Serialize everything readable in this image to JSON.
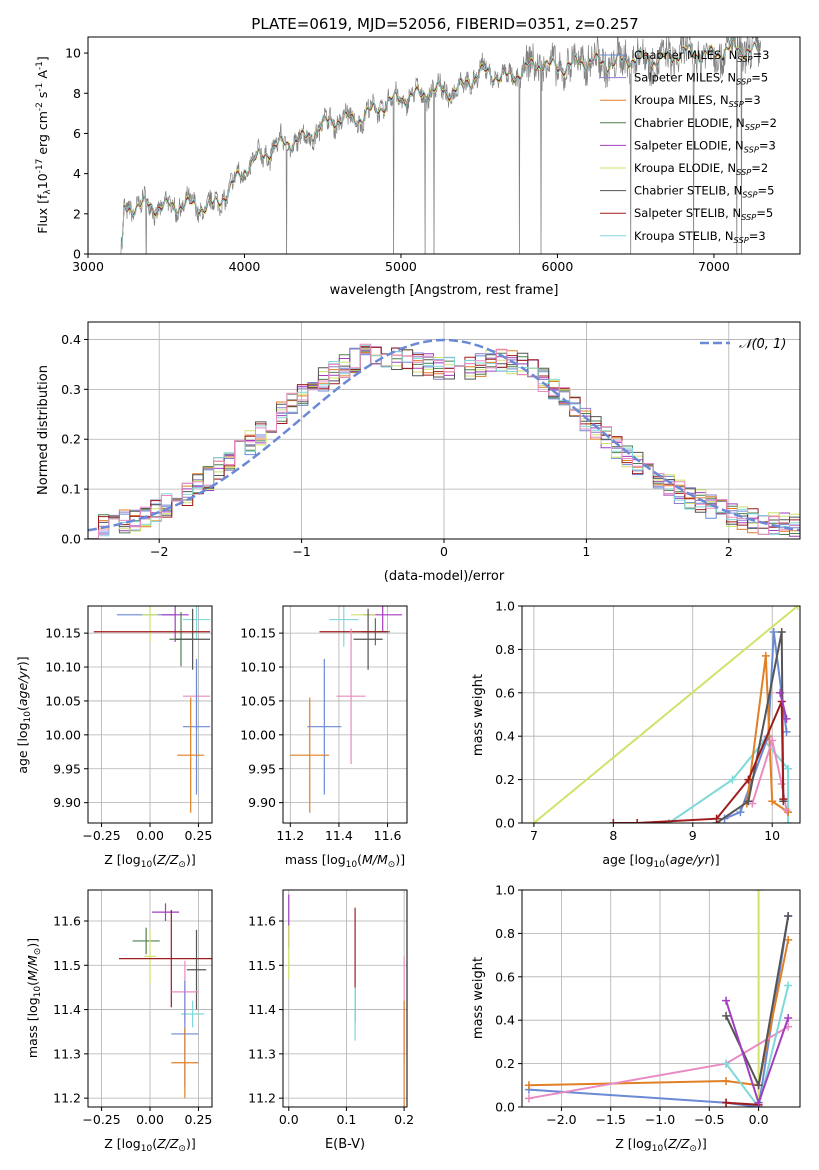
{
  "figure_title": "PLATE=0619, MJD=52056, FIBERID=0351, z=0.257",
  "colors": {
    "CM": "#6a8ad6",
    "SM": "#8c7ec9",
    "KM": "#e07f24",
    "CE": "#4f7f4f",
    "SE": "#a23fbf",
    "KE": "#cfe36a",
    "CS": "#555555",
    "SS": "#a01c1c",
    "KS": "#80d8d8",
    "extra": "#e88bc2",
    "data": "#808080"
  },
  "chart_data": [
    {
      "type": "line",
      "title": "PLATE=0619, MJD=52056, FIBERID=0351, z=0.257",
      "xlabel": "wavelength [Angstrom, rest frame]",
      "ylabel": "Flux [f",
      "ylabel_parts": [
        "Flux [f",
        "λ",
        "10",
        "-17",
        " erg cm",
        "-2",
        " s",
        "-1",
        " A",
        "-1",
        "]"
      ],
      "xlim": [
        3000,
        7550
      ],
      "ylim": [
        0,
        10.8
      ],
      "xticks": [
        3000,
        4000,
        5000,
        6000,
        7000
      ],
      "yticks": [
        0,
        2,
        4,
        6,
        8,
        10
      ],
      "legend_loc": "upper right",
      "legend": [
        {
          "label": "Chabrier MILES, N",
          "sub": "SSP",
          "tail": "=3",
          "color": "CM"
        },
        {
          "label": "Salpeter MILES, N",
          "sub": "SSP",
          "tail": "=5",
          "color": "SM"
        },
        {
          "label": "Kroupa MILES, N",
          "sub": "SSP",
          "tail": "=3",
          "color": "KM"
        },
        {
          "label": "Chabrier ELODIE, N",
          "sub": "SSP",
          "tail": "=2",
          "color": "CE"
        },
        {
          "label": "Salpeter ELODIE, N",
          "sub": "SSP",
          "tail": "=3",
          "color": "SE"
        },
        {
          "label": "Kroupa ELODIE, N",
          "sub": "SSP",
          "tail": "=2",
          "color": "KE"
        },
        {
          "label": "Chabrier STELIB, N",
          "sub": "SSP",
          "tail": "=5",
          "color": "CS"
        },
        {
          "label": "Salpeter STELIB, N",
          "sub": "SSP",
          "tail": "=5",
          "color": "SS"
        },
        {
          "label": "Kroupa STELIB, N",
          "sub": "SSP",
          "tail": "=3",
          "color": "KS"
        }
      ],
      "continuum": [
        [
          3220,
          0
        ],
        [
          3230,
          2.1
        ],
        [
          3400,
          2.5
        ],
        [
          3600,
          2.3
        ],
        [
          3700,
          2.4
        ],
        [
          3800,
          2.5
        ],
        [
          3900,
          3.0
        ],
        [
          4000,
          4.2
        ],
        [
          4100,
          5.0
        ],
        [
          4300,
          5.5
        ],
        [
          4500,
          6.4
        ],
        [
          4700,
          6.8
        ],
        [
          4900,
          7.3
        ],
        [
          5000,
          7.9
        ],
        [
          5200,
          8.0
        ],
        [
          5300,
          8.1
        ],
        [
          5500,
          8.9
        ],
        [
          5700,
          8.9
        ],
        [
          5900,
          9.4
        ],
        [
          6100,
          9.4
        ],
        [
          6300,
          9.6
        ],
        [
          6500,
          9.6
        ],
        [
          6700,
          9.8
        ],
        [
          6900,
          10.0
        ],
        [
          7100,
          10.1
        ],
        [
          7300,
          10.2
        ]
      ]
    },
    {
      "type": "histogram",
      "xlabel": "(data-model)/error",
      "ylabel": "Normed distribution",
      "xlim": [
        -2.5,
        2.5
      ],
      "ylim": [
        0,
        0.435
      ],
      "xticks": [
        -2,
        -1,
        0,
        1,
        2
      ],
      "yticks": [
        0.0,
        0.1,
        0.2,
        0.3,
        0.4
      ],
      "grid": true,
      "legend_loc": "upper right",
      "legend_label": "𝒩(0, 1)",
      "bin_width": 0.1,
      "base_values": [
        0.025,
        0.027,
        0.03,
        0.035,
        0.04,
        0.045,
        0.055,
        0.066,
        0.079,
        0.092,
        0.106,
        0.122,
        0.139,
        0.157,
        0.175,
        0.194,
        0.213,
        0.232,
        0.251,
        0.27,
        0.288,
        0.305,
        0.321,
        0.335,
        0.348,
        0.358,
        0.366,
        0.371,
        0.368,
        0.362,
        0.355,
        0.35,
        0.347,
        0.344,
        0.342,
        0.343,
        0.345,
        0.349,
        0.354,
        0.358,
        0.356,
        0.348,
        0.336,
        0.32,
        0.302,
        0.282,
        0.261,
        0.24,
        0.221,
        0.203,
        0.185,
        0.168,
        0.152,
        0.137,
        0.122,
        0.109,
        0.096,
        0.085,
        0.074,
        0.065,
        0.056,
        0.048,
        0.042,
        0.037,
        0.033,
        0.03,
        0.028,
        0.026
      ]
    },
    {
      "type": "scatter",
      "xlabel": "Z [log",
      "xlabel_parts": [
        "Z [log",
        "10",
        "(",
        "Z/Z",
        "⊙",
        ")]"
      ],
      "ylabel": "age  [log",
      "ylabel_parts": [
        "age  [log",
        "10",
        "(",
        "age/yr",
        ")]"
      ],
      "xlim": [
        -0.32,
        0.32
      ],
      "ylim": [
        9.87,
        10.19
      ],
      "xticks": [
        -0.25,
        0.0,
        0.25
      ],
      "xtick_labels": [
        "−0.25",
        "0.00",
        "0.25"
      ],
      "yticks": [
        9.9,
        9.95,
        10.0,
        10.05,
        10.1,
        10.15
      ],
      "grid": true,
      "points": [
        {
          "x": -0.02,
          "y": 10.177,
          "xerr": 0.15,
          "yerr": 0.0,
          "c": "CM"
        },
        {
          "x": 0.13,
          "y": 10.177,
          "xerr": 0.07,
          "yerr": 0.04,
          "c": "SE"
        },
        {
          "x": 0.0,
          "y": 10.177,
          "xerr": 0.04,
          "yerr": 0.04,
          "c": "KE"
        },
        {
          "x": 0.16,
          "y": 10.141,
          "xerr": 0.06,
          "yerr": 0.04,
          "c": "CE"
        },
        {
          "x": 0.24,
          "y": 10.17,
          "xerr": 0.07,
          "yerr": 0.03,
          "c": "KS"
        },
        {
          "x": 0.22,
          "y": 10.141,
          "xerr": 0.09,
          "yerr": 0.045,
          "c": "CS"
        },
        {
          "x": 0.01,
          "y": 10.152,
          "xerr": 0.3,
          "yerr": 0.0,
          "c": "SS"
        },
        {
          "x": 0.24,
          "y": 10.057,
          "xerr": 0.07,
          "yerr": 0.05,
          "c": "extra"
        },
        {
          "x": 0.24,
          "y": 10.012,
          "xerr": 0.07,
          "yerr": 0.1,
          "c": "CM"
        },
        {
          "x": 0.21,
          "y": 9.97,
          "xerr": 0.07,
          "yerr": 0.085,
          "c": "KM"
        }
      ]
    },
    {
      "type": "scatter",
      "xlabel": "mass [log",
      "xlabel_parts": [
        "mass [log",
        "10",
        "(",
        "M/M",
        "⊙",
        ")]"
      ],
      "xlim": [
        11.17,
        11.68
      ],
      "ylim": [
        9.87,
        10.19
      ],
      "xticks": [
        11.2,
        11.4,
        11.6
      ],
      "yticks": [
        9.9,
        9.95,
        10.0,
        10.05,
        10.1,
        10.15
      ],
      "grid": true,
      "points": [
        {
          "x": 11.58,
          "y": 10.177,
          "xerr": 0.08,
          "yerr": 0.025,
          "c": "SE"
        },
        {
          "x": 11.5,
          "y": 10.177,
          "xerr": 0.05,
          "yerr": 0.0,
          "c": "KE"
        },
        {
          "x": 11.42,
          "y": 10.17,
          "xerr": 0.06,
          "yerr": 0.04,
          "c": "KS"
        },
        {
          "x": 11.55,
          "y": 10.152,
          "xerr": 0.06,
          "yerr": 0.02,
          "c": "CE"
        },
        {
          "x": 11.52,
          "y": 10.141,
          "xerr": 0.06,
          "yerr": 0.045,
          "c": "CS"
        },
        {
          "x": 11.46,
          "y": 10.152,
          "xerr": 0.14,
          "yerr": 0.0,
          "c": "SS"
        },
        {
          "x": 11.45,
          "y": 10.057,
          "xerr": 0.06,
          "yerr": 0.1,
          "c": "extra"
        },
        {
          "x": 11.34,
          "y": 10.012,
          "xerr": 0.07,
          "yerr": 0.1,
          "c": "CM"
        },
        {
          "x": 11.28,
          "y": 9.97,
          "xerr": 0.08,
          "yerr": 0.085,
          "c": "KM"
        }
      ]
    },
    {
      "type": "line",
      "xlabel": "age  [log",
      "xlabel_parts": [
        "age  [log",
        "10",
        "(",
        "age/yr",
        ")]"
      ],
      "ylabel": "mass weight",
      "xlim": [
        6.85,
        10.35
      ],
      "ylim": [
        0,
        1.0
      ],
      "xticks": [
        7,
        8,
        9,
        10
      ],
      "yticks": [
        0.0,
        0.2,
        0.4,
        0.6,
        0.8,
        1.0
      ],
      "yticks_labels": [
        "0.0",
        "0.2",
        "0.4",
        "0.6",
        "0.8",
        "1.0"
      ],
      "grid": true,
      "series": [
        {
          "c": "KE",
          "pts": [
            [
              7.0,
              0
            ],
            [
              10.32,
              1.0
            ]
          ]
        },
        {
          "c": "KS",
          "pts": [
            [
              8.7,
              0.0
            ],
            [
              9.5,
              0.2
            ],
            [
              9.9,
              0.38
            ],
            [
              10.2,
              0.25
            ],
            [
              10.2,
              0.0
            ]
          ]
        },
        {
          "c": "CM",
          "pts": [
            [
              9.4,
              0.02
            ],
            [
              9.6,
              0.05
            ],
            [
              9.95,
              0.4
            ],
            [
              10.02,
              0.88
            ],
            [
              10.18,
              0.42
            ]
          ]
        },
        {
          "c": "KM",
          "pts": [
            [
              9.68,
              0.09
            ],
            [
              9.92,
              0.77
            ],
            [
              10.0,
              0.1
            ],
            [
              10.2,
              0.05
            ]
          ]
        },
        {
          "c": "extra",
          "pts": [
            [
              9.75,
              0.09
            ],
            [
              10.0,
              0.38
            ],
            [
              10.12,
              0.18
            ],
            [
              10.18,
              0.06
            ]
          ]
        },
        {
          "c": "CS",
          "pts": [
            [
              9.3,
              0.0
            ],
            [
              9.7,
              0.1
            ],
            [
              10.12,
              0.88
            ],
            [
              10.14,
              0.1
            ]
          ]
        },
        {
          "c": "SS",
          "pts": [
            [
              8.0,
              0.0
            ],
            [
              8.3,
              0.0
            ],
            [
              9.3,
              0.02
            ],
            [
              9.7,
              0.2
            ],
            [
              10.12,
              0.56
            ],
            [
              10.14,
              0.11
            ]
          ]
        },
        {
          "c": "SE",
          "pts": [
            [
              10.1,
              0.6
            ],
            [
              10.18,
              0.48
            ]
          ]
        }
      ]
    },
    {
      "type": "scatter",
      "xlabel": "Z [log",
      "xlabel_parts": [
        "Z [log",
        "10",
        "(",
        "Z/Z",
        "⊙",
        ")]"
      ],
      "ylabel": "mass [log",
      "ylabel_parts": [
        "mass [log",
        "10",
        "(",
        "M/M",
        "⊙",
        ")]"
      ],
      "xlim": [
        -0.32,
        0.32
      ],
      "ylim": [
        11.18,
        11.67
      ],
      "xticks": [
        -0.25,
        0.0,
        0.25
      ],
      "xtick_labels": [
        "−0.25",
        "0.00",
        "0.25"
      ],
      "yticks": [
        11.2,
        11.3,
        11.4,
        11.5,
        11.6
      ],
      "grid": true,
      "points": [
        {
          "x": 0.08,
          "y": 11.62,
          "xerr": 0.07,
          "yerr": 0.02,
          "c": "SE"
        },
        {
          "x": -0.02,
          "y": 11.555,
          "xerr": 0.07,
          "yerr": 0.03,
          "c": "CE"
        },
        {
          "x": 0.0,
          "y": 11.52,
          "xerr": 0.03,
          "yerr": 0.06,
          "c": "KE"
        },
        {
          "x": 0.11,
          "y": 11.515,
          "xerr": 0.27,
          "yerr": 0.11,
          "c": "SS"
        },
        {
          "x": 0.24,
          "y": 11.49,
          "xerr": 0.05,
          "yerr": 0.09,
          "c": "CS"
        },
        {
          "x": 0.18,
          "y": 11.44,
          "xerr": 0.07,
          "yerr": 0.07,
          "c": "extra"
        },
        {
          "x": 0.22,
          "y": 11.39,
          "xerr": 0.06,
          "yerr": 0.03,
          "c": "KS"
        },
        {
          "x": 0.18,
          "y": 11.345,
          "xerr": 0.07,
          "yerr": 0.12,
          "c": "CM"
        },
        {
          "x": 0.18,
          "y": 11.28,
          "xerr": 0.07,
          "yerr": 0.08,
          "c": "KM"
        }
      ]
    },
    {
      "type": "scatter",
      "xlabel": "E(B-V)",
      "xlim": [
        -0.01,
        0.205
      ],
      "ylim": [
        11.18,
        11.67
      ],
      "xticks": [
        0.0,
        0.1,
        0.2
      ],
      "xtick_labels": [
        "0.0",
        "0.1",
        "0.2"
      ],
      "yticks": [
        11.2,
        11.3,
        11.4,
        11.5,
        11.6
      ],
      "grid": true,
      "points": [
        {
          "x": 0.0,
          "y": 11.6,
          "xerr": 0.0,
          "yerr": 0.06,
          "c": "SE"
        },
        {
          "x": 0.0,
          "y": 11.53,
          "xerr": 0.0,
          "yerr": 0.06,
          "c": "KE"
        },
        {
          "x": 0.115,
          "y": 11.5,
          "xerr": 0.0,
          "yerr": 0.13,
          "c": "SS"
        },
        {
          "x": 0.115,
          "y": 11.39,
          "xerr": 0.0,
          "yerr": 0.06,
          "c": "KS"
        },
        {
          "x": 0.2,
          "y": 11.4,
          "xerr": 0.0,
          "yerr": 0.12,
          "c": "extra"
        },
        {
          "x": 0.2,
          "y": 11.3,
          "xerr": 0.0,
          "yerr": 0.12,
          "c": "KM"
        }
      ]
    },
    {
      "type": "line",
      "xlabel": "Z [log",
      "xlabel_parts": [
        "Z [log",
        "10",
        "(",
        "Z/Z",
        "⊙",
        ")]"
      ],
      "ylabel": "mass weight",
      "xlim": [
        -2.4,
        0.42
      ],
      "ylim": [
        0,
        1.0
      ],
      "xticks": [
        -2.0,
        -1.5,
        -1.0,
        -0.5,
        0.0
      ],
      "xtick_labels": [
        "−2.0",
        "−1.5",
        "−1.0",
        "−0.5",
        "0.0"
      ],
      "yticks": [
        0.0,
        0.2,
        0.4,
        0.6,
        0.8,
        1.0
      ],
      "yticks_labels": [
        "0.0",
        "0.2",
        "0.4",
        "0.6",
        "0.8",
        "1.0"
      ],
      "grid": true,
      "series": [
        {
          "c": "KE",
          "pts": [
            [
              0.0,
              0.0
            ],
            [
              0.0,
              1.0
            ]
          ]
        },
        {
          "c": "CM",
          "pts": [
            [
              -2.33,
              0.08
            ],
            [
              -0.33,
              0.02
            ],
            [
              0.0,
              0.0
            ],
            [
              0.3,
              0.88
            ]
          ]
        },
        {
          "c": "KM",
          "pts": [
            [
              -2.33,
              0.1
            ],
            [
              -0.33,
              0.12
            ],
            [
              0.0,
              0.1
            ],
            [
              0.3,
              0.77
            ]
          ]
        },
        {
          "c": "extra",
          "pts": [
            [
              -2.33,
              0.04
            ],
            [
              -0.33,
              0.2
            ],
            [
              0.3,
              0.37
            ]
          ]
        },
        {
          "c": "KS",
          "pts": [
            [
              -0.33,
              0.2
            ],
            [
              0.0,
              0.0
            ],
            [
              0.3,
              0.56
            ]
          ]
        },
        {
          "c": "CS",
          "pts": [
            [
              -0.33,
              0.42
            ],
            [
              0.0,
              0.1
            ],
            [
              0.3,
              0.88
            ]
          ]
        },
        {
          "c": "SS",
          "pts": [
            [
              -0.33,
              0.02
            ],
            [
              0.0,
              0.01
            ]
          ]
        },
        {
          "c": "SE",
          "pts": [
            [
              -0.33,
              0.49
            ],
            [
              0.0,
              0.02
            ],
            [
              0.3,
              0.41
            ]
          ]
        }
      ]
    }
  ]
}
